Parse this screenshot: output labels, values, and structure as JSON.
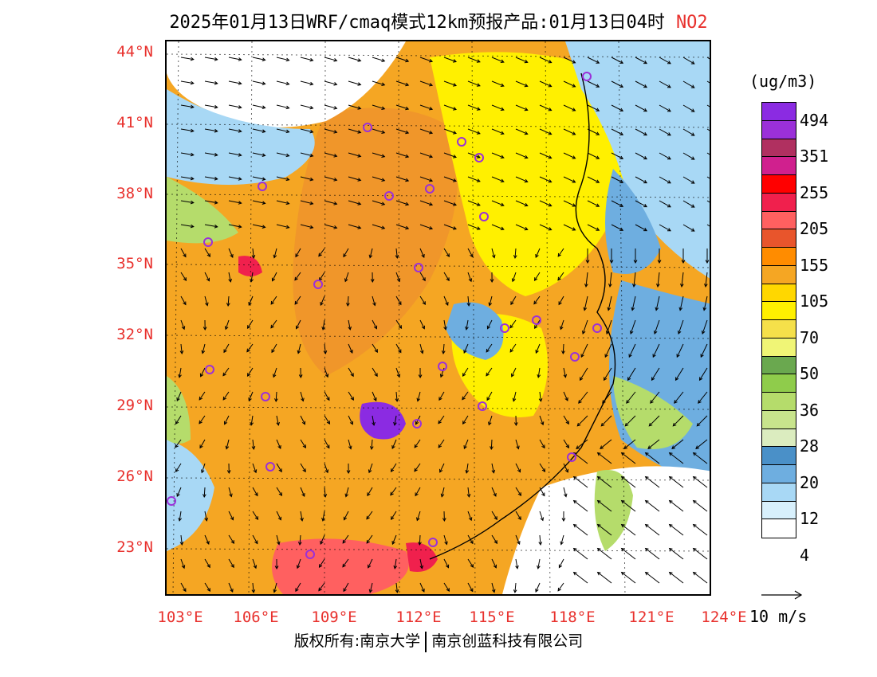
{
  "title": {
    "text": "2025年01月13日WRF/cmaq模式12km预报产品:01月13日04时",
    "pollutant": "NO2"
  },
  "axes": {
    "lat_labels": [
      "44°N",
      "41°N",
      "38°N",
      "35°N",
      "32°N",
      "29°N",
      "26°N",
      "23°N"
    ],
    "lon_labels": [
      "103°E",
      "106°E",
      "109°E",
      "112°E",
      "115°E",
      "118°E",
      "121°E",
      "124°E"
    ]
  },
  "legend": {
    "unit": "(ug/m3)",
    "colors": [
      "#8b2be2",
      "#9b30d9",
      "#b03060",
      "#d0208e",
      "#ff0000",
      "#f0204d",
      "#ff6060",
      "#e8552c",
      "#ff8c00",
      "#f5a623",
      "#ffd700",
      "#fff000",
      "#f5e04a",
      "#f0f576",
      "#6aa84f",
      "#8fcc4b",
      "#b5dc6b",
      "#c8e48c",
      "#dbecbf",
      "#4a90c8",
      "#6eaee0",
      "#a8d8f5",
      "#d8f0fc",
      "#ffffff"
    ],
    "tick_labels": [
      "494",
      "351",
      "255",
      "205",
      "155",
      "105",
      "70",
      "50",
      "36",
      "28",
      "20",
      "12",
      "4"
    ]
  },
  "vector_key": {
    "label": "10 m/s"
  },
  "footer": {
    "copyright_left": "版权所有:南京大学",
    "copyright_right": "南京创蓝科技有限公司"
  },
  "map_colors": {
    "orange": "#f5a623",
    "dark_orange": "#f0962a",
    "yellow": "#fff000",
    "green": "#b5dc6b",
    "blue": "#6eaee0",
    "light_blue": "#a8d8f5",
    "red": "#f0204d",
    "purple": "#8b2be2",
    "station_ring": "#9b30d9"
  }
}
